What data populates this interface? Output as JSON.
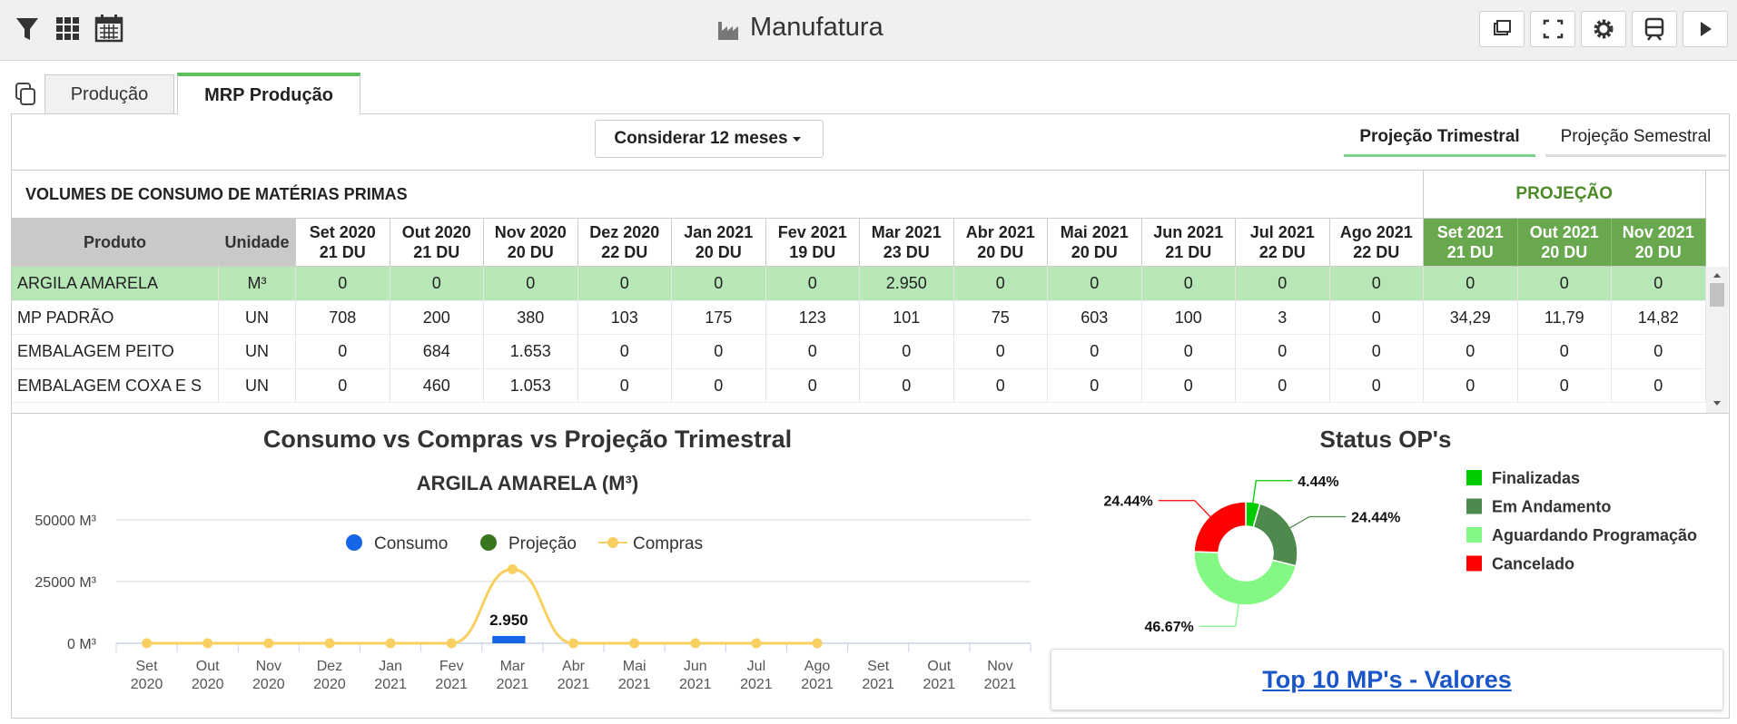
{
  "header": {
    "title": "Manufatura"
  },
  "tabs": [
    "Produção",
    "MRP Produção"
  ],
  "filter": {
    "label": "Considerar 12 meses"
  },
  "view_tabs": [
    "Projeção Trimestral",
    "Projeção Semestral"
  ],
  "table": {
    "title": "VOLUMES DE CONSUMO DE MATÉRIAS PRIMAS",
    "projection_label": "PROJEÇÃO",
    "columns": [
      "Produto",
      "Unidade"
    ],
    "months": [
      {
        "name": "Set 2020",
        "days": "21 DU"
      },
      {
        "name": "Out 2020",
        "days": "21 DU"
      },
      {
        "name": "Nov 2020",
        "days": "20 DU"
      },
      {
        "name": "Dez 2020",
        "days": "22 DU"
      },
      {
        "name": "Jan 2021",
        "days": "20 DU"
      },
      {
        "name": "Fev 2021",
        "days": "19 DU"
      },
      {
        "name": "Mar 2021",
        "days": "23 DU"
      },
      {
        "name": "Abr 2021",
        "days": "20 DU"
      },
      {
        "name": "Mai 2021",
        "days": "20 DU"
      },
      {
        "name": "Jun 2021",
        "days": "21 DU"
      },
      {
        "name": "Jul 2021",
        "days": "22 DU"
      },
      {
        "name": "Ago 2021",
        "days": "22 DU"
      }
    ],
    "projection_months": [
      {
        "name": "Set 2021",
        "days": "21 DU"
      },
      {
        "name": "Out 2021",
        "days": "20 DU"
      },
      {
        "name": "Nov 2021",
        "days": "20 DU"
      }
    ],
    "rows": [
      {
        "product": "ARGILA AMARELA",
        "unit": "M³",
        "values": [
          "0",
          "0",
          "0",
          "0",
          "0",
          "0",
          "2.950",
          "0",
          "0",
          "0",
          "0",
          "0"
        ],
        "projection": [
          "0",
          "0",
          "0"
        ]
      },
      {
        "product": "MP PADRÃO",
        "unit": "UN",
        "values": [
          "708",
          "200",
          "380",
          "103",
          "175",
          "123",
          "101",
          "75",
          "603",
          "100",
          "3",
          "0"
        ],
        "projection": [
          "34,29",
          "11,79",
          "14,82"
        ]
      },
      {
        "product": "EMBALAGEM PEITO",
        "unit": "UN",
        "values": [
          "0",
          "684",
          "1.653",
          "0",
          "0",
          "0",
          "0",
          "0",
          "0",
          "0",
          "0",
          "0"
        ],
        "projection": [
          "0",
          "0",
          "0"
        ]
      },
      {
        "product": "EMBALAGEM COXA E S",
        "unit": "UN",
        "values": [
          "0",
          "460",
          "1.053",
          "0",
          "0",
          "0",
          "0",
          "0",
          "0",
          "0",
          "0",
          "0"
        ],
        "projection": [
          "0",
          "0",
          "0"
        ]
      }
    ]
  },
  "chart_data": [
    {
      "type": "combo",
      "title": "Consumo vs Compras vs Projeção Trimestral",
      "subtitle": "ARGILA AMARELA (M³)",
      "categories": [
        [
          "Set",
          "2020"
        ],
        [
          "Out",
          "2020"
        ],
        [
          "Nov",
          "2020"
        ],
        [
          "Dez",
          "2020"
        ],
        [
          "Jan",
          "2021"
        ],
        [
          "Fev",
          "2021"
        ],
        [
          "Mar",
          "2021"
        ],
        [
          "Abr",
          "2021"
        ],
        [
          "Mai",
          "2021"
        ],
        [
          "Jun",
          "2021"
        ],
        [
          "Jul",
          "2021"
        ],
        [
          "Ago",
          "2021"
        ],
        [
          "Set",
          "2021"
        ],
        [
          "Out",
          "2021"
        ],
        [
          "Nov",
          "2021"
        ]
      ],
      "ylim": [
        0,
        50000
      ],
      "yticks": [
        {
          "value": 0,
          "label": "0 M³"
        },
        {
          "value": 25000,
          "label": "25000 M³"
        },
        {
          "value": 50000,
          "label": "50000 M³"
        }
      ],
      "grid": true,
      "series": [
        {
          "name": "Consumo",
          "type": "bar",
          "color": "#1565e6",
          "values": [
            0,
            0,
            0,
            0,
            0,
            0,
            2950,
            0,
            0,
            0,
            0,
            0,
            null,
            null,
            null
          ],
          "value_labels": [
            null,
            null,
            null,
            null,
            null,
            null,
            "2.950",
            null,
            null,
            null,
            null,
            null,
            null,
            null,
            null
          ]
        },
        {
          "name": "Projeção",
          "type": "bar",
          "color": "#38761d",
          "values": [
            null,
            null,
            null,
            null,
            null,
            null,
            null,
            null,
            null,
            null,
            null,
            null,
            0,
            0,
            0
          ]
        },
        {
          "name": "Compras",
          "type": "line",
          "color": "#f7d061",
          "values": [
            0,
            0,
            0,
            0,
            0,
            0,
            30000,
            0,
            0,
            0,
            0,
            0,
            null,
            null,
            null
          ]
        }
      ]
    },
    {
      "type": "pie",
      "title": "Status OP's",
      "donut": true,
      "categories": [
        "Finalizadas",
        "Em Andamento",
        "Aguardando Programação",
        "Cancelado"
      ],
      "values": [
        4.44,
        24.44,
        46.67,
        24.44
      ],
      "value_labels": [
        "4.44%",
        "24.44%",
        "46.67%",
        "24.44%"
      ],
      "colors": [
        "#00cc00",
        "#4e8a4e",
        "#84f884",
        "#ff0000"
      ]
    }
  ],
  "link": {
    "label": "Top 10 MP's - Valores"
  }
}
